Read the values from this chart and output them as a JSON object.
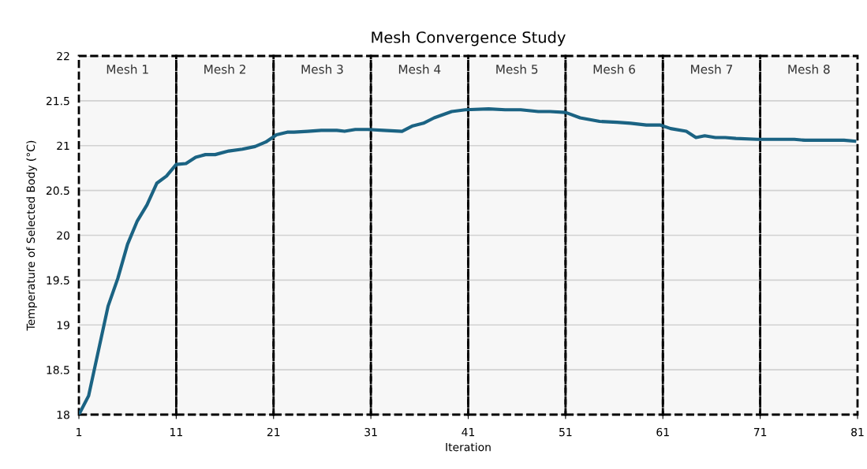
{
  "chart_data": {
    "type": "line",
    "title": "Mesh Convergence Study",
    "xlabel": "Iteration",
    "ylabel": "Temperature of Selected Body (°C)",
    "series": [
      {
        "color": "#1b6383",
        "x": [
          1,
          2,
          4,
          5,
          6,
          7,
          8,
          9,
          10,
          11,
          12,
          13,
          14,
          15,
          16.4,
          17.8,
          19.1,
          20.2,
          21.3,
          22.4,
          23.1,
          24.5,
          25.9,
          27.5,
          28.3,
          29.4,
          30.7,
          32.3,
          34.2,
          35.3,
          36.4,
          37.5,
          39.3,
          40.7,
          43.1,
          44.8,
          46.4,
          48.2,
          49.4,
          51,
          52.5,
          54.5,
          56.3,
          57.7,
          59.3,
          60.7,
          61.8,
          63.4,
          64.4,
          65.3,
          66.4,
          67.4,
          68.5,
          70.7,
          74.5,
          75.6,
          79.6,
          80.7
        ],
        "values": [
          18.0,
          18.21,
          19.21,
          19.52,
          19.9,
          20.16,
          20.34,
          20.58,
          20.66,
          20.79,
          20.8,
          20.87,
          20.9,
          20.9,
          20.94,
          20.96,
          20.99,
          21.04,
          21.12,
          21.15,
          21.15,
          21.16,
          21.17,
          21.17,
          21.16,
          21.18,
          21.18,
          21.17,
          21.16,
          21.22,
          21.25,
          21.31,
          21.38,
          21.4,
          21.41,
          21.4,
          21.4,
          21.38,
          21.38,
          21.37,
          21.31,
          21.27,
          21.26,
          21.25,
          21.23,
          21.23,
          21.19,
          21.16,
          21.09,
          21.11,
          21.09,
          21.09,
          21.08,
          21.07,
          21.07,
          21.06,
          21.06,
          21.05
        ]
      }
    ],
    "xlim": [
      1,
      81
    ],
    "xticks": [
      1,
      11,
      21,
      31,
      41,
      51,
      61,
      71,
      81
    ],
    "ylim": [
      18,
      22
    ],
    "yticks": [
      18,
      18.5,
      19,
      19.5,
      20,
      20.5,
      21,
      21.5,
      22
    ],
    "grid": "y",
    "legend": false,
    "marker": "none",
    "line_style": "solid",
    "bands": [
      {
        "axis": "x",
        "from": 1,
        "to": 11,
        "label": "Mesh 1",
        "color": "#000000"
      },
      {
        "axis": "x",
        "from": 11,
        "to": 21,
        "label": "Mesh 2",
        "color": "#000000"
      },
      {
        "axis": "x",
        "from": 21,
        "to": 31,
        "label": "Mesh 3",
        "color": "#000000"
      },
      {
        "axis": "x",
        "from": 31,
        "to": 41,
        "label": "Mesh 4",
        "color": "#000000"
      },
      {
        "axis": "x",
        "from": 41,
        "to": 51,
        "label": "Mesh 5",
        "color": "#000000"
      },
      {
        "axis": "x",
        "from": 51,
        "to": 61,
        "label": "Mesh 6",
        "color": "#000000"
      },
      {
        "axis": "x",
        "from": 61,
        "to": 71,
        "label": "Mesh 7",
        "color": "#000000"
      },
      {
        "axis": "x",
        "from": 71,
        "to": 81,
        "label": "Mesh 8",
        "color": "#000000"
      }
    ]
  }
}
